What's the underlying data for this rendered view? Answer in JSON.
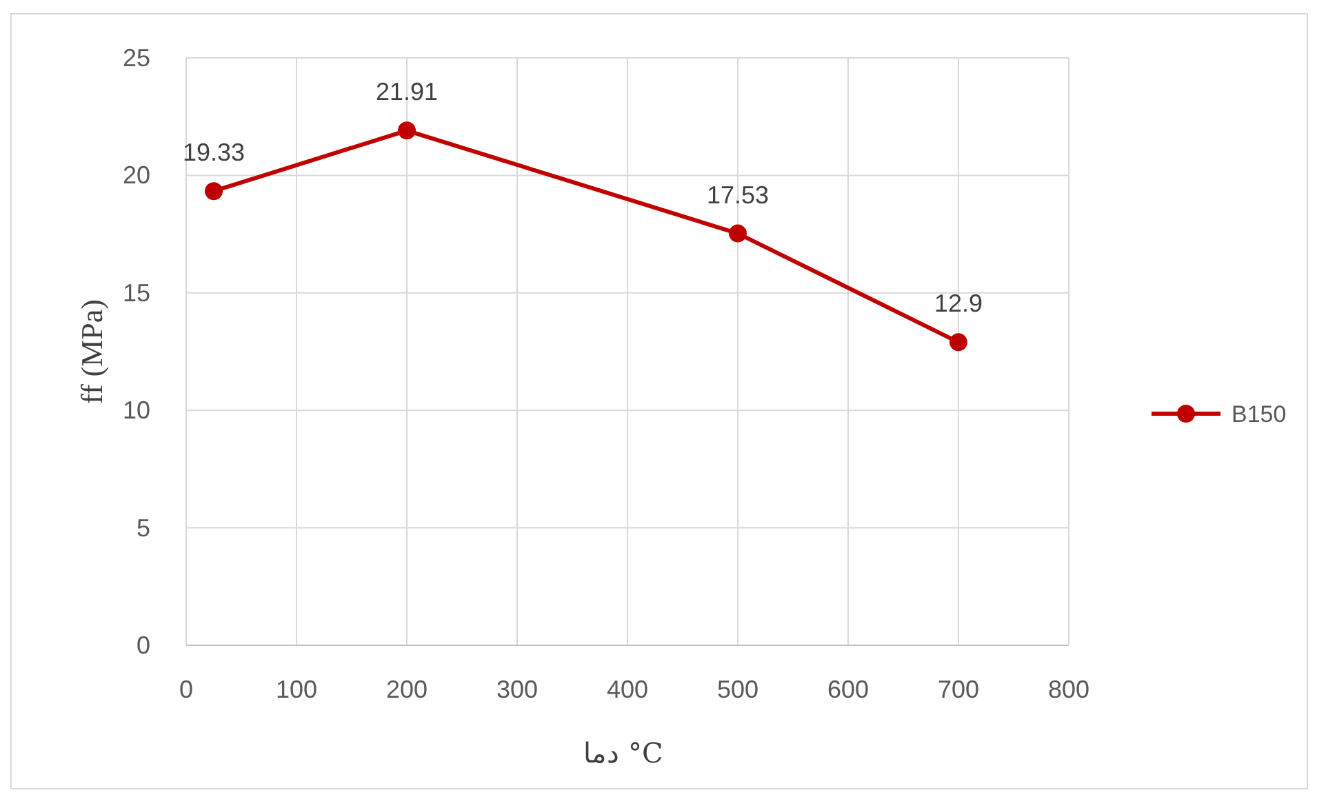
{
  "chart_data": {
    "type": "line",
    "xlabel": "دما °C",
    "ylabel": "ff (MPa)",
    "x": [
      25,
      200,
      500,
      700
    ],
    "series": [
      {
        "name": "B150",
        "color": "#c00000",
        "values": [
          19.33,
          21.91,
          17.53,
          12.9
        ]
      }
    ],
    "xlim": [
      0,
      800
    ],
    "xticks": [
      0,
      100,
      200,
      300,
      400,
      500,
      600,
      700,
      800
    ],
    "ylim": [
      0,
      25
    ],
    "yticks": [
      0,
      5,
      10,
      15,
      20,
      25
    ],
    "grid": true,
    "legend": "right",
    "marker": "circle",
    "line_style": "solid",
    "data_labels": true
  }
}
